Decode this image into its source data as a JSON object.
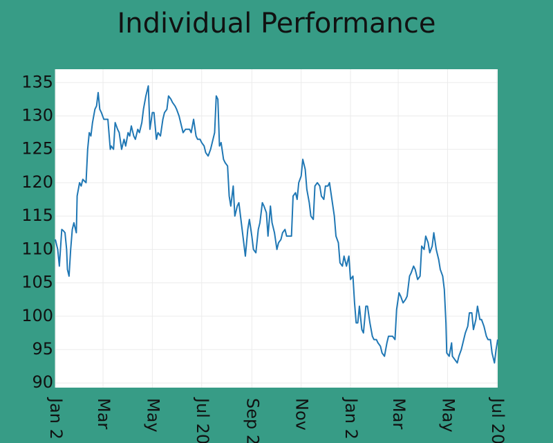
{
  "chart_data": {
    "type": "line",
    "title": "Individual Performance",
    "x": [
      0,
      3,
      5,
      8,
      10,
      12,
      14,
      15,
      17,
      19,
      21,
      23,
      26,
      27,
      30,
      32,
      34,
      38,
      40,
      42,
      44,
      46,
      49,
      51,
      53,
      55,
      57,
      60,
      62,
      65,
      68,
      69,
      72,
      74,
      77,
      79,
      82,
      85,
      87,
      90,
      92,
      94,
      97,
      99,
      102,
      104,
      107,
      109,
      112,
      115,
      117,
      120,
      122,
      125,
      127,
      130,
      133,
      135,
      138,
      140,
      143,
      145,
      148,
      150,
      153,
      156,
      158,
      161,
      163,
      166,
      168,
      171,
      174,
      176,
      179,
      181,
      184,
      186,
      189,
      192,
      194,
      197,
      199,
      201,
      203,
      205,
      208,
      210,
      213,
      215,
      217,
      220,
      222,
      225,
      227,
      230,
      233,
      235,
      238,
      240,
      243,
      245,
      248,
      251,
      253,
      256,
      258,
      261,
      263,
      266,
      268,
      271,
      274,
      276,
      279,
      281,
      284,
      286,
      289,
      292,
      294,
      297,
      299,
      301,
      304,
      306,
      309,
      311,
      314,
      316,
      319,
      321,
      324,
      327,
      329,
      332,
      334,
      337,
      339,
      342,
      345,
      347,
      350,
      352,
      355,
      357,
      360,
      363,
      365,
      368,
      370,
      372,
      374,
      376,
      379,
      381,
      384,
      386,
      389,
      392,
      394,
      397,
      399,
      402,
      404,
      407,
      410,
      412,
      415,
      417,
      420,
      422,
      425,
      427,
      430,
      433,
      435,
      438,
      440,
      443,
      445,
      448,
      451,
      453,
      456,
      458,
      461,
      463,
      466,
      468,
      471,
      474,
      476,
      479,
      481,
      483,
      484,
      487,
      490,
      491,
      494,
      497,
      499,
      502,
      504,
      507,
      510,
      512,
      515,
      517,
      520,
      522,
      525,
      527,
      530,
      533,
      535,
      538,
      540,
      543,
      545,
      547
    ],
    "series": [
      {
        "color": "#1f77b4",
        "values": [
          111.5,
          110,
          107.5,
          113,
          112.8,
          112.5,
          110,
          107,
          106,
          110,
          113,
          114,
          112.5,
          118,
          120,
          119.5,
          120.5,
          120,
          125,
          127.5,
          127,
          129,
          131,
          131.5,
          133.5,
          131,
          130.5,
          129.5,
          129.5,
          129.5,
          125,
          125.5,
          125,
          129,
          128,
          127.5,
          125,
          126.5,
          125.5,
          127.5,
          127,
          128.5,
          127,
          126.5,
          128,
          127.5,
          129,
          131,
          133,
          134.5,
          128,
          130.5,
          130.5,
          126.5,
          127.5,
          127,
          129.5,
          130.5,
          131,
          133,
          132.5,
          132,
          131.5,
          131,
          130,
          128.5,
          127.5,
          128,
          128,
          128,
          127.5,
          129.5,
          127,
          126.5,
          126.5,
          126,
          125.5,
          124.5,
          124,
          125,
          126,
          127.5,
          133,
          132.5,
          125.5,
          126,
          123.5,
          123,
          122.5,
          118,
          116.5,
          119.5,
          115,
          116.5,
          117,
          114,
          111,
          109,
          113,
          114.5,
          112,
          110,
          109.5,
          113,
          114,
          117,
          116.5,
          115.5,
          112,
          116.5,
          114,
          112.5,
          110,
          111,
          111.5,
          112.5,
          113,
          112,
          112,
          112,
          118,
          118.5,
          117.5,
          120,
          121,
          123.5,
          122,
          119,
          117,
          115,
          114.5,
          119.5,
          120,
          119.5,
          118,
          117.5,
          119.5,
          119.5,
          120,
          117.5,
          115,
          112,
          111,
          108,
          107.5,
          109,
          107.5,
          109,
          105.5,
          106,
          102,
          99,
          99,
          101.5,
          98,
          97.5,
          101.5,
          101.5,
          99,
          97,
          96.5,
          96.5,
          96,
          95.5,
          94.5,
          94,
          96,
          97,
          97,
          97,
          96.5,
          101,
          103.5,
          103,
          102,
          102.5,
          103,
          106,
          106.5,
          107.5,
          107,
          105.5,
          106,
          110.5,
          110,
          112,
          111,
          109.5,
          110.5,
          112.5,
          110,
          108.5,
          107,
          106,
          104,
          99,
          94.5,
          94,
          96,
          94,
          93.5,
          93,
          94,
          95,
          96,
          97.5,
          98.5,
          100.5,
          100.5,
          98,
          99.5,
          101.5,
          99.5,
          99.5,
          98.5,
          97,
          96.5,
          96.5,
          94.5,
          93,
          95,
          96.5
        ]
      }
    ],
    "xlim": [
      0,
      547
    ],
    "xticks": [
      {
        "value": 0,
        "label": "Jan 2"
      },
      {
        "value": 59,
        "label": "Mar"
      },
      {
        "value": 120,
        "label": "May"
      },
      {
        "value": 181,
        "label": "Jul 20"
      },
      {
        "value": 243,
        "label": "Sep 2"
      },
      {
        "value": 304,
        "label": "Nov"
      },
      {
        "value": 365,
        "label": "Jan 2"
      },
      {
        "value": 424,
        "label": "Mar"
      },
      {
        "value": 485,
        "label": "May"
      },
      {
        "value": 546,
        "label": "Jul 20"
      }
    ],
    "ylim": [
      89.3,
      137
    ],
    "yticks": [
      90,
      95,
      100,
      105,
      110,
      115,
      120,
      125,
      130,
      135
    ],
    "grid": true
  }
}
